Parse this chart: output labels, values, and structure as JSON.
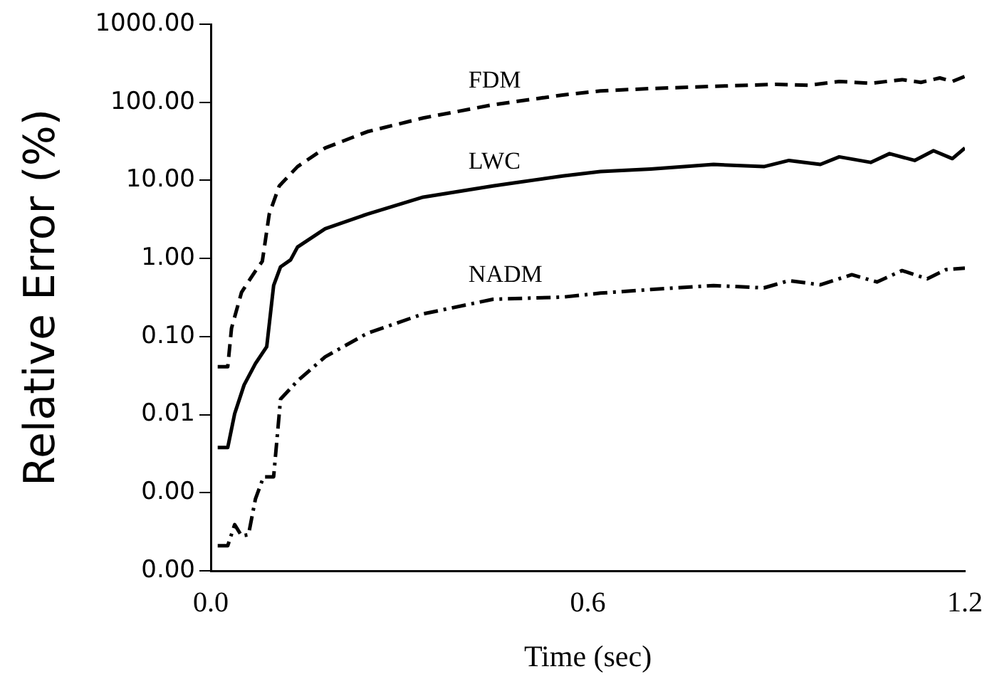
{
  "chart_data": {
    "type": "line",
    "xlabel": "Time (sec)",
    "ylabel": "Relative Error (%)",
    "log": "y",
    "grid": false,
    "legend": false,
    "marker": "none",
    "xlim": [
      0,
      1.2
    ],
    "xticks": [
      {
        "value": 0,
        "label": "0.0"
      },
      0.6,
      1.2
    ],
    "ylim": [
      0.0001,
      1000
    ],
    "yticks": [
      {
        "value": 0.0001,
        "label": "0.00"
      },
      {
        "value": 0.001,
        "label": "0.00"
      },
      0.01,
      {
        "value": 0.1,
        "label": "0.10"
      },
      {
        "value": 1,
        "label": "1.00"
      },
      {
        "value": 10,
        "label": "10.00"
      },
      {
        "value": 100,
        "label": "100.00"
      },
      {
        "value": 1000,
        "label": "1000.00"
      }
    ],
    "series": [
      {
        "name": "FDM",
        "color": "#000000",
        "line_style": "dashed",
        "x": [
          0.011,
          0.027,
          0.033,
          0.049,
          0.071,
          0.082,
          0.093,
          0.109,
          0.138,
          0.182,
          0.249,
          0.338,
          0.449,
          0.56,
          0.62,
          0.7,
          0.8,
          0.9,
          0.95,
          1.0,
          1.05,
          1.1,
          1.13,
          1.16,
          1.18,
          1.2
        ],
        "values": [
          0.041,
          0.041,
          0.128,
          0.37,
          0.69,
          0.92,
          3.7,
          8.5,
          15,
          26,
          42,
          63,
          93,
          124,
          140,
          150,
          160,
          170,
          165,
          185,
          175,
          195,
          180,
          205,
          185,
          215
        ]
      },
      {
        "name": "LWC",
        "color": "#000000",
        "line_style": "solid",
        "x": [
          0.011,
          0.027,
          0.038,
          0.053,
          0.071,
          0.089,
          0.1,
          0.111,
          0.127,
          0.138,
          0.182,
          0.249,
          0.338,
          0.449,
          0.56,
          0.62,
          0.7,
          0.8,
          0.88,
          0.92,
          0.97,
          1.0,
          1.05,
          1.08,
          1.12,
          1.15,
          1.18,
          1.2
        ],
        "values": [
          0.0038,
          0.0038,
          0.0103,
          0.024,
          0.045,
          0.074,
          0.45,
          0.78,
          0.96,
          1.4,
          2.4,
          3.7,
          6.1,
          8.5,
          11.4,
          13,
          14,
          16,
          15,
          18,
          16,
          20,
          17,
          22,
          18,
          24,
          19,
          26
        ]
      },
      {
        "name": "NADM",
        "color": "#000000",
        "line_style": "dashdot",
        "x": [
          0.011,
          0.027,
          0.038,
          0.049,
          0.06,
          0.071,
          0.084,
          0.1,
          0.111,
          0.138,
          0.182,
          0.249,
          0.338,
          0.449,
          0.56,
          0.62,
          0.7,
          0.8,
          0.88,
          0.92,
          0.97,
          1.02,
          1.06,
          1.1,
          1.14,
          1.17,
          1.2
        ],
        "values": [
          0.00021,
          0.00021,
          0.00039,
          0.00028,
          0.00029,
          0.00083,
          0.0016,
          0.0016,
          0.0158,
          0.027,
          0.055,
          0.11,
          0.195,
          0.3,
          0.32,
          0.36,
          0.4,
          0.45,
          0.42,
          0.52,
          0.46,
          0.62,
          0.5,
          0.7,
          0.55,
          0.72,
          0.75
        ]
      }
    ]
  }
}
